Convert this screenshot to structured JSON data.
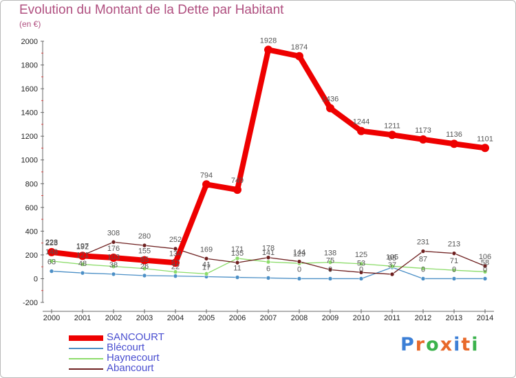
{
  "title": "Evolution du Montant de la Dette par Habitant",
  "unit": "(en €)",
  "logo": {
    "text": "Proxiti",
    "letter_colors": [
      "#3c7fd6",
      "#e8692a",
      "#3bb24c",
      "#e8692a",
      "#3c7fd6",
      "#e8692a",
      "#3bb24c"
    ]
  },
  "chart_data": {
    "type": "line",
    "title": "Evolution du Montant de la Dette par Habitant",
    "ylabel": "(en €)",
    "xlabel": "",
    "ylim": [
      -200,
      2000
    ],
    "yticks": [
      -200,
      0,
      200,
      400,
      600,
      800,
      1000,
      1200,
      1400,
      1600,
      1800,
      2000
    ],
    "grid": false,
    "legend_position": "bottom-left",
    "x": [
      "2000",
      "2001",
      "2002",
      "2003",
      "2004",
      "2005",
      "2006",
      "2007",
      "2008",
      "2009",
      "2010",
      "2011",
      "2012",
      "2013",
      "2014"
    ],
    "series": [
      {
        "name": "SANCOURT",
        "color": "#ee0000",
        "values": [
          223,
          192,
          176,
          155,
          134,
          794,
          749,
          1928,
          1874,
          1436,
          1244,
          1211,
          1173,
          1136,
          1101
        ],
        "labels": [
          "223",
          "192",
          "176",
          "155",
          "134",
          "794",
          "749",
          "1928",
          "1874",
          "1436",
          "1244",
          "1211",
          "1173",
          "1136",
          "1101"
        ]
      },
      {
        "name": "Blécourt",
        "color": "#4b8fc6",
        "values": [
          63,
          48,
          38,
          26,
          22,
          17,
          11,
          6,
          0,
          0,
          0,
          95,
          0,
          0,
          0
        ],
        "labels": [
          "63",
          "48",
          "38",
          "26",
          "22",
          "17",
          "11",
          "6",
          "0",
          "0",
          "0",
          "95",
          "0",
          "0",
          "0"
        ]
      },
      {
        "name": "Haynecourt",
        "color": "#8cdc6a",
        "values": [
          148,
          121,
          103,
          85,
          57,
          41,
          171,
          141,
          129,
          138,
          125,
          105,
          87,
          71,
          58
        ],
        "labels": [
          "148",
          "121",
          "103",
          "85",
          "57",
          "41",
          "171",
          "141",
          "129",
          "138",
          "125",
          "105",
          "87",
          "71",
          "58"
        ]
      },
      {
        "name": "Abancourt",
        "color": "#6e2020",
        "values": [
          228,
          197,
          308,
          280,
          252,
          169,
          135,
          178,
          144,
          75,
          53,
          37,
          231,
          213,
          106
        ],
        "labels": [
          "228",
          "197",
          "308",
          "280",
          "252",
          "169",
          "135",
          "178",
          "144",
          "75",
          "53",
          "37",
          "231",
          "213",
          "106"
        ]
      }
    ]
  }
}
